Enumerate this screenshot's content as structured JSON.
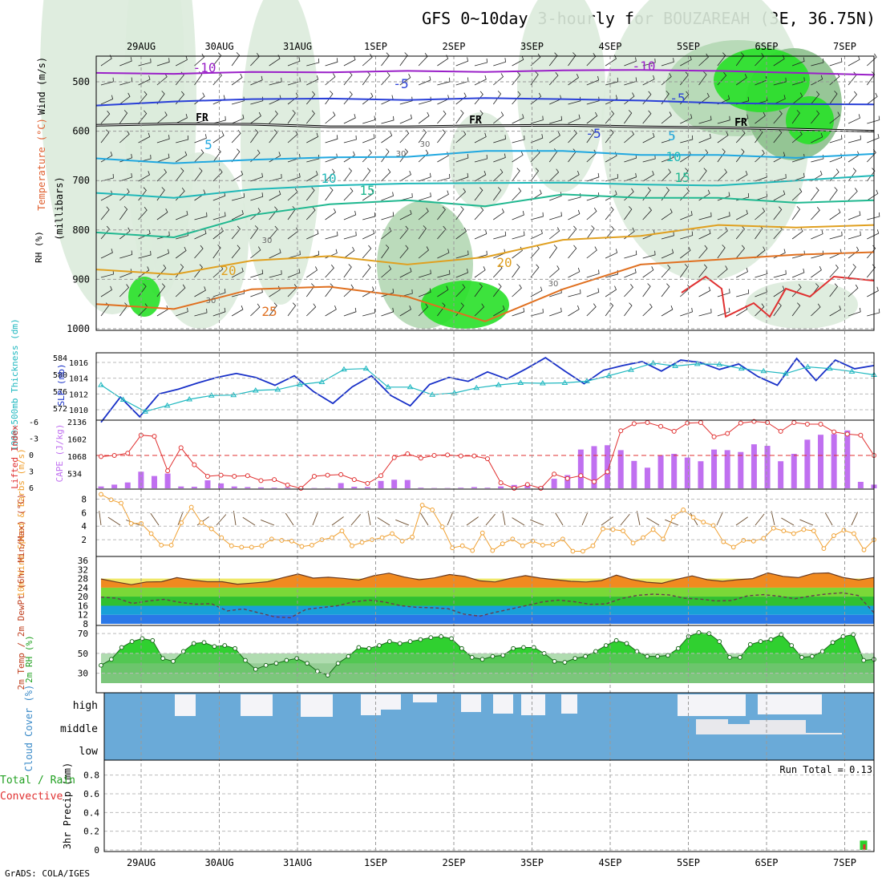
{
  "title": "GFS 0~10day 3-hourly for BOUZAREAH (3E, 36.75N)",
  "footer": "GrADS: COLA/IGES",
  "colors": {
    "rh_light": "#dcebdc",
    "rh_mid": "#b4d7b4",
    "rh_dark": "#8cc08c",
    "rh_green": "#28e028",
    "temp_purple": "#9a20c8",
    "temp_blue": "#2a40d8",
    "temp_cyan": "#20a8e0",
    "temp_teal": "#20b8b8",
    "temp_seagreen": "#20b890",
    "temp_orange": "#e0a020",
    "temp_dorange": "#e07020",
    "temp_red": "#e03030",
    "slp": "#1830c8",
    "thickness": "#20b8c0",
    "lifted": "#e03030",
    "cape": "#c070f0",
    "wind10": "#f0a030",
    "barb": "#6a4a2a",
    "cloud": "#6aaad8"
  },
  "chart_data": [
    {
      "panel": "upper-air",
      "type": "heatmap",
      "ylabel": "(millibars)",
      "yticks": [
        500,
        600,
        700,
        800,
        900,
        1000
      ],
      "x_categories": [
        "29AUG",
        "30AUG",
        "31AUG",
        "1SEP",
        "2SEP",
        "3SEP",
        "4SEP",
        "5SEP",
        "6SEP",
        "7SEP"
      ],
      "side_labels": [
        "Wind (m/s)",
        "Temperature (°C)",
        "RH (%)"
      ],
      "temperature_labels": [
        "-10",
        "-10",
        "-5",
        "-5",
        "-5",
        "FR",
        "FR",
        "FR",
        "5",
        "5",
        "10",
        "10",
        "15",
        "15",
        "20",
        "20",
        "25"
      ],
      "rh_labels": [
        "30",
        "30",
        "30",
        "30",
        "30"
      ],
      "isotherms": [
        {
          "label": "-10",
          "color": "temp_purple",
          "p": [
            482,
            484,
            480,
            481,
            478,
            480,
            477,
            476,
            478,
            482,
            486
          ]
        },
        {
          "label": "-5",
          "color": "temp_blue",
          "p": [
            548,
            540,
            535,
            534,
            537,
            533,
            535,
            538,
            543,
            545,
            546
          ]
        },
        {
          "label": "FR",
          "color": "black",
          "p": [
            588,
            585,
            586,
            591,
            591,
            589,
            588,
            591,
            593,
            596,
            600
          ]
        },
        {
          "label": "5",
          "color": "temp_cyan",
          "p": [
            655,
            665,
            658,
            653,
            652,
            640,
            640,
            648,
            648,
            654,
            646
          ]
        },
        {
          "label": "10",
          "color": "temp_teal",
          "p": [
            725,
            735,
            718,
            710,
            706,
            705,
            704,
            708,
            710,
            700,
            690
          ]
        },
        {
          "label": "15",
          "color": "temp_seagreen",
          "p": [
            805,
            815,
            770,
            748,
            740,
            752,
            728,
            735,
            735,
            745,
            740
          ]
        },
        {
          "label": "20",
          "color": "temp_orange",
          "p": [
            880,
            890,
            862,
            853,
            870,
            855,
            820,
            812,
            790,
            795,
            790
          ]
        },
        {
          "label": "25",
          "color": "temp_dorange",
          "p": [
            950,
            960,
            920,
            915,
            935,
            985,
            920,
            870,
            860,
            850,
            845
          ]
        }
      ]
    },
    {
      "panel": "slp-thickness",
      "type": "line",
      "ylabel_left": "1000~500mb Thickness (dm)",
      "ylabel_right": "SLP (mb)",
      "y_left_ticks": [
        572,
        576,
        580,
        584
      ],
      "y_right_ticks": [
        1010,
        1012,
        1014,
        1016
      ],
      "slp": [
        1008.4,
        1011.6,
        1009.1,
        1012.0,
        1012.6,
        1013.4,
        1014.1,
        1014.6,
        1014.1,
        1013.1,
        1014.3,
        1012.3,
        1010.8,
        1012.9,
        1014.3,
        1011.8,
        1010.5,
        1013.2,
        1014.1,
        1013.6,
        1014.8,
        1013.9,
        1015.2,
        1016.6,
        1014.9,
        1013.3,
        1015.0,
        1015.6,
        1016.1,
        1014.9,
        1016.3,
        1016.0,
        1015.1,
        1015.8,
        1014.2,
        1013.1,
        1016.5,
        1013.7,
        1016.3,
        1015.2,
        1015.6
      ],
      "thickness": [
        577.5,
        574.0,
        571.2,
        572.6,
        574.1,
        575.0,
        575.1,
        576.2,
        576.4,
        577.6,
        578.2,
        581.2,
        581.4,
        577.0,
        577.0,
        575.2,
        575.6,
        576.8,
        577.5,
        578.0,
        577.9,
        578.0,
        578.4,
        579.7,
        581.1,
        582.7,
        582.0,
        582.5,
        582.4,
        581.4,
        580.8,
        580.2,
        581.8,
        581.4,
        580.7,
        579.9
      ]
    },
    {
      "panel": "lifted-cape",
      "type": "bar",
      "ylabel_left": "Lifted Index",
      "ylabel_right": "CAPE (J/kg)",
      "y_left_ticks": [
        "-6",
        "-3",
        "0",
        "3",
        "6"
      ],
      "y_right_ticks": [
        "2136",
        "1602",
        "1068",
        "534"
      ],
      "lifted_index": [
        0.2,
        0.0,
        -0.4,
        -3.7,
        -3.5,
        2.8,
        -1.4,
        1.7,
        3.8,
        3.6,
        3.8,
        3.7,
        4.6,
        4.4,
        5.4,
        6.0,
        3.8,
        3.6,
        3.5,
        4.4,
        5.1,
        3.7,
        0.4,
        -0.3,
        0.5,
        0.0,
        -0.1,
        0.1,
        0.1,
        0.6,
        5.0,
        6.2,
        5.3,
        6.0,
        3.4,
        4.2,
        3.7,
        4.8,
        3.0,
        -4.5,
        -5.8,
        -6.0,
        -5.3,
        -4.4,
        -5.9,
        -6.0,
        -3.4,
        -4.0,
        -5.9,
        -6.2,
        -6.0,
        -4.4,
        -6.0,
        -5.7,
        -5.7,
        -4.3,
        -3.9,
        -3.7,
        0.0
      ],
      "cape": [
        60,
        120,
        190,
        540,
        400,
        480,
        60,
        50,
        260,
        160,
        60,
        40,
        30,
        20,
        30,
        20,
        10,
        10,
        170,
        50,
        40,
        240,
        280,
        270,
        20,
        10,
        10,
        20,
        40,
        20,
        60,
        110,
        100,
        50,
        310,
        430,
        1260,
        1370,
        1400,
        1240,
        890,
        670,
        1080,
        1120,
        1000,
        880,
        1260,
        1240,
        1180,
        1430,
        1380,
        880,
        1120,
        1580,
        1740,
        1760,
        1880,
        210,
        120
      ]
    },
    {
      "panel": "wind10",
      "type": "line",
      "ylabel": "10m Wind Speed & Barbs (m/s)",
      "yticks": [
        2,
        4,
        6,
        8
      ],
      "speed": [
        8.7,
        7.9,
        7.4,
        4.4,
        4.4,
        2.9,
        1.2,
        1.2,
        4.5,
        6.8,
        4.5,
        3.6,
        2.3,
        1.1,
        0.9,
        0.9,
        1.1,
        2.1,
        1.9,
        1.8,
        1.0,
        1.2,
        2.0,
        2.3,
        3.3,
        1.1,
        1.6,
        2.0,
        2.3,
        2.9,
        1.8,
        2.4,
        7.1,
        6.4,
        3.9,
        0.8,
        1.1,
        0.4,
        3.0,
        0.4,
        1.4,
        2.1,
        1.1,
        1.8,
        1.2,
        1.3,
        2.1,
        0.3,
        0.3,
        1.1,
        3.6,
        3.5,
        3.3,
        1.5,
        2.3,
        3.5,
        2.1,
        5.4,
        6.4,
        5.3,
        4.6,
        4.1,
        1.7,
        0.9,
        1.9,
        1.8,
        2.2,
        3.7,
        3.3,
        2.9,
        3.5,
        3.3,
        0.7,
        2.6,
        3.4,
        2.9,
        0.5,
        2.0
      ]
    },
    {
      "panel": "temp2m",
      "type": "area",
      "ylabel": "2m Temp / 2m DewPt (6hr Min/Max) (°C)",
      "yticks": [
        "8",
        "12",
        "16",
        "20",
        "24",
        "28",
        "32",
        "36"
      ],
      "temperature": [
        27.8,
        26.5,
        25.3,
        26.5,
        26.6,
        28.4,
        27.4,
        26.6,
        26.6,
        25.5,
        26.0,
        26.6,
        28.4,
        30.0,
        28.2,
        28.6,
        28.1,
        27.3,
        29.3,
        30.4,
        28.7,
        27.5,
        28.3,
        29.8,
        29.0,
        27.0,
        26.5,
        28.1,
        29.3,
        28.2,
        27.5,
        26.8,
        26.5,
        27.1,
        29.5,
        27.6,
        26.4,
        25.9,
        27.7,
        29.2,
        27.5,
        26.8,
        27.5,
        28.0,
        30.5,
        29.0,
        28.4,
        30.3,
        30.5,
        28.4,
        27.4,
        28.5
      ],
      "dewpoint": [
        19.8,
        19.3,
        17.0,
        18.1,
        18.8,
        17.5,
        16.7,
        16.9,
        13.7,
        14.6,
        12.9,
        11.1,
        10.7,
        14.4,
        15.2,
        16.0,
        17.7,
        18.5,
        17.6,
        16.0,
        15.3,
        15.1,
        14.7,
        12.3,
        11.4,
        13.1,
        14.6,
        16.1,
        17.7,
        18.5,
        17.8,
        16.6,
        16.8,
        19.2,
        20.6,
        21.1,
        20.8,
        19.3,
        18.9,
        18.1,
        18.3,
        20.4,
        20.9,
        20.2,
        19.1,
        20.3,
        21.2,
        21.7,
        20.5,
        12.9
      ]
    },
    {
      "panel": "rh2m",
      "type": "area",
      "ylabel": "2m RH (%)",
      "yticks": [
        30,
        50,
        70
      ],
      "rh": [
        38,
        44,
        56,
        62,
        65,
        63,
        45,
        42,
        52,
        60,
        61,
        57,
        58,
        55,
        43,
        34,
        38,
        40,
        43,
        45,
        40,
        32,
        28,
        40,
        47,
        56,
        55,
        58,
        62,
        60,
        62,
        64,
        66,
        67,
        65,
        55,
        46,
        44,
        47,
        48,
        55,
        56,
        56,
        50,
        42,
        41,
        45,
        47,
        52,
        58,
        63,
        60,
        52,
        47,
        47,
        48,
        55,
        67,
        71,
        70,
        62,
        46,
        46,
        59,
        62,
        64,
        69,
        58,
        46,
        47,
        52,
        61,
        67,
        69,
        43,
        44
      ]
    },
    {
      "panel": "cloud",
      "type": "heatmap",
      "ylabel": "Cloud Cover (%)",
      "levels": [
        "high",
        "middle",
        "low"
      ]
    },
    {
      "panel": "precip",
      "type": "bar",
      "ylabel": "3hr Precip (mm)",
      "side_labels": [
        "Total / Rain",
        "Convective"
      ],
      "yticks": [
        "0",
        "0.2",
        "0.4",
        "0.6",
        "0.8"
      ],
      "annotation": "Run Total = 0.13",
      "total": [
        0,
        0,
        0,
        0,
        0,
        0,
        0,
        0,
        0,
        0,
        0,
        0,
        0,
        0,
        0,
        0,
        0,
        0,
        0,
        0,
        0,
        0,
        0,
        0,
        0,
        0,
        0,
        0,
        0,
        0,
        0,
        0,
        0,
        0,
        0,
        0,
        0,
        0,
        0,
        0,
        0,
        0,
        0,
        0,
        0,
        0,
        0,
        0,
        0,
        0,
        0,
        0,
        0,
        0,
        0,
        0,
        0,
        0,
        0,
        0,
        0,
        0,
        0,
        0,
        0,
        0,
        0,
        0,
        0,
        0,
        0,
        0,
        0,
        0,
        0,
        0,
        0.1,
        0
      ],
      "convective": [
        0,
        0,
        0,
        0,
        0,
        0,
        0,
        0,
        0,
        0,
        0,
        0,
        0,
        0,
        0,
        0,
        0,
        0,
        0,
        0,
        0,
        0,
        0,
        0,
        0,
        0,
        0,
        0,
        0,
        0,
        0,
        0,
        0,
        0,
        0,
        0,
        0,
        0,
        0,
        0,
        0,
        0,
        0,
        0,
        0,
        0,
        0,
        0,
        0,
        0,
        0,
        0,
        0,
        0,
        0,
        0,
        0,
        0,
        0,
        0,
        0,
        0,
        0,
        0,
        0,
        0,
        0,
        0,
        0,
        0,
        0,
        0,
        0,
        0,
        0,
        0,
        0.06,
        0
      ]
    }
  ]
}
